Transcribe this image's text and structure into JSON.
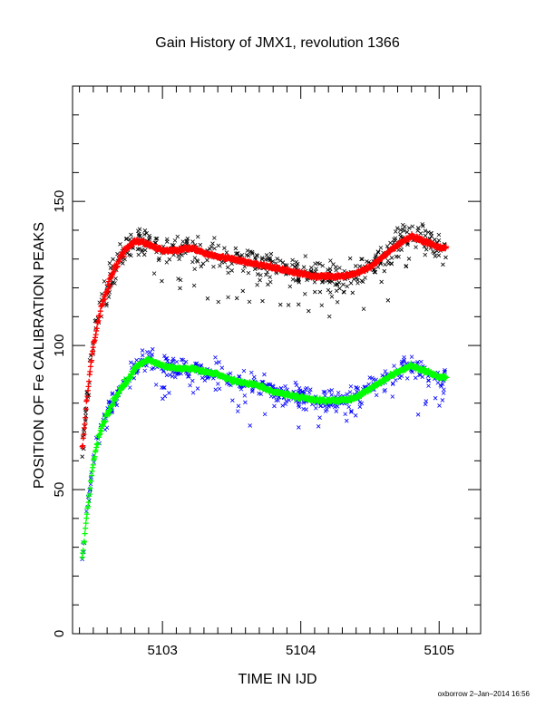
{
  "chart_data": {
    "type": "scatter",
    "title": "Gain History of JMX1, revolution 1366",
    "xlabel": "TIME IN IJD",
    "ylabel": "POSITION OF Fe CALIBRATION PEAKS",
    "footer": "oxborrow  2–Jan–2014 16:56",
    "xlim": [
      5102.35,
      5105.3
    ],
    "ylim": [
      0,
      190
    ],
    "xticks": [
      5103,
      5104,
      5105
    ],
    "xtick_labels": [
      "5103",
      "5104",
      "5105"
    ],
    "yticks": [
      0,
      50,
      100,
      150
    ],
    "ytick_labels": [
      "0",
      "50",
      "100",
      "150"
    ],
    "grid": false,
    "legend": "none",
    "series": [
      {
        "role": "upper-raw",
        "marker": "x",
        "color": "#000000",
        "x_range": [
          5102.42,
          5105.05
        ],
        "mean_curve_x": [
          5102.42,
          5102.45,
          5102.5,
          5102.55,
          5102.6,
          5102.65,
          5102.7,
          5102.75,
          5102.8,
          5102.85,
          5102.9,
          5102.95,
          5103.0,
          5103.1,
          5103.2,
          5103.3,
          5103.4,
          5103.5,
          5103.6,
          5103.7,
          5103.8,
          5103.9,
          5104.0,
          5104.1,
          5104.2,
          5104.3,
          5104.4,
          5104.5,
          5104.6,
          5104.7,
          5104.8,
          5104.85,
          5104.9,
          5104.95,
          5105.0,
          5105.05
        ],
        "mean_curve_y": [
          64,
          80,
          100,
          112,
          120,
          126,
          131,
          134,
          136,
          136,
          135,
          134,
          133,
          133,
          134,
          132,
          131,
          130,
          129,
          128,
          127,
          126,
          125,
          124,
          124,
          124,
          125,
          127,
          131,
          135,
          138,
          137,
          136,
          135,
          134,
          134
        ],
        "spread": 5
      },
      {
        "role": "upper-fit",
        "marker": "+",
        "color": "#ff0000",
        "x_range": [
          5102.42,
          5105.05
        ]
      },
      {
        "role": "lower-raw",
        "marker": "x",
        "color": "#0000ff",
        "x_range": [
          5102.42,
          5105.05
        ],
        "mean_curve_x": [
          5102.42,
          5102.45,
          5102.5,
          5102.55,
          5102.6,
          5102.65,
          5102.7,
          5102.75,
          5102.8,
          5102.85,
          5102.9,
          5102.95,
          5103.0,
          5103.1,
          5103.2,
          5103.3,
          5103.4,
          5103.5,
          5103.6,
          5103.7,
          5103.8,
          5103.9,
          5104.0,
          5104.1,
          5104.2,
          5104.3,
          5104.4,
          5104.5,
          5104.6,
          5104.7,
          5104.8,
          5104.85,
          5104.9,
          5104.95,
          5105.0,
          5105.05
        ],
        "mean_curve_y": [
          26,
          40,
          60,
          70,
          76,
          81,
          85,
          88,
          92,
          94,
          95,
          94,
          93,
          92,
          92,
          91,
          90,
          88,
          87,
          86,
          84,
          83,
          82,
          81,
          81,
          81,
          82,
          85,
          88,
          91,
          93,
          92,
          91,
          90,
          89,
          89
        ],
        "spread": 4
      },
      {
        "role": "lower-fit",
        "marker": "+",
        "color": "#00ff00",
        "x_range": [
          5102.42,
          5105.05
        ]
      }
    ]
  }
}
